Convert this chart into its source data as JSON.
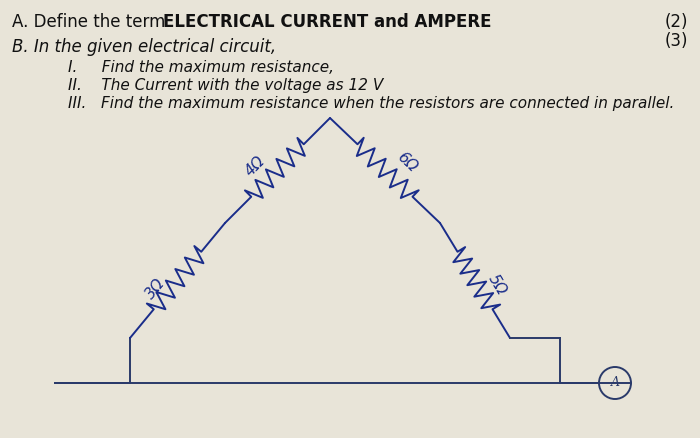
{
  "background_color": "#e8e4d8",
  "title_plain": "A. Define the term ",
  "title_bold": "ELECTRICAL CURRENT and AMPERE",
  "mark_a": "(2)",
  "mark_b": "(3)",
  "section_b": "B. In the given electrical circuit,",
  "item_I": "I.     Find the maximum resistance,",
  "item_II": "II.    The Current with the voltage as 12 V",
  "item_III": "III.   Find the maximum resistance when the resistors are connected in parallel.",
  "circuit_color": "#1a2d8a",
  "wire_color": "#2a3a6a",
  "label_3ohm": "3Ω",
  "label_4ohm": "4Ω",
  "label_6ohm": "6Ω",
  "label_5ohm": "5Ω",
  "text_color_main": "#111111",
  "font_size_main": 12,
  "font_size_circuit": 11
}
